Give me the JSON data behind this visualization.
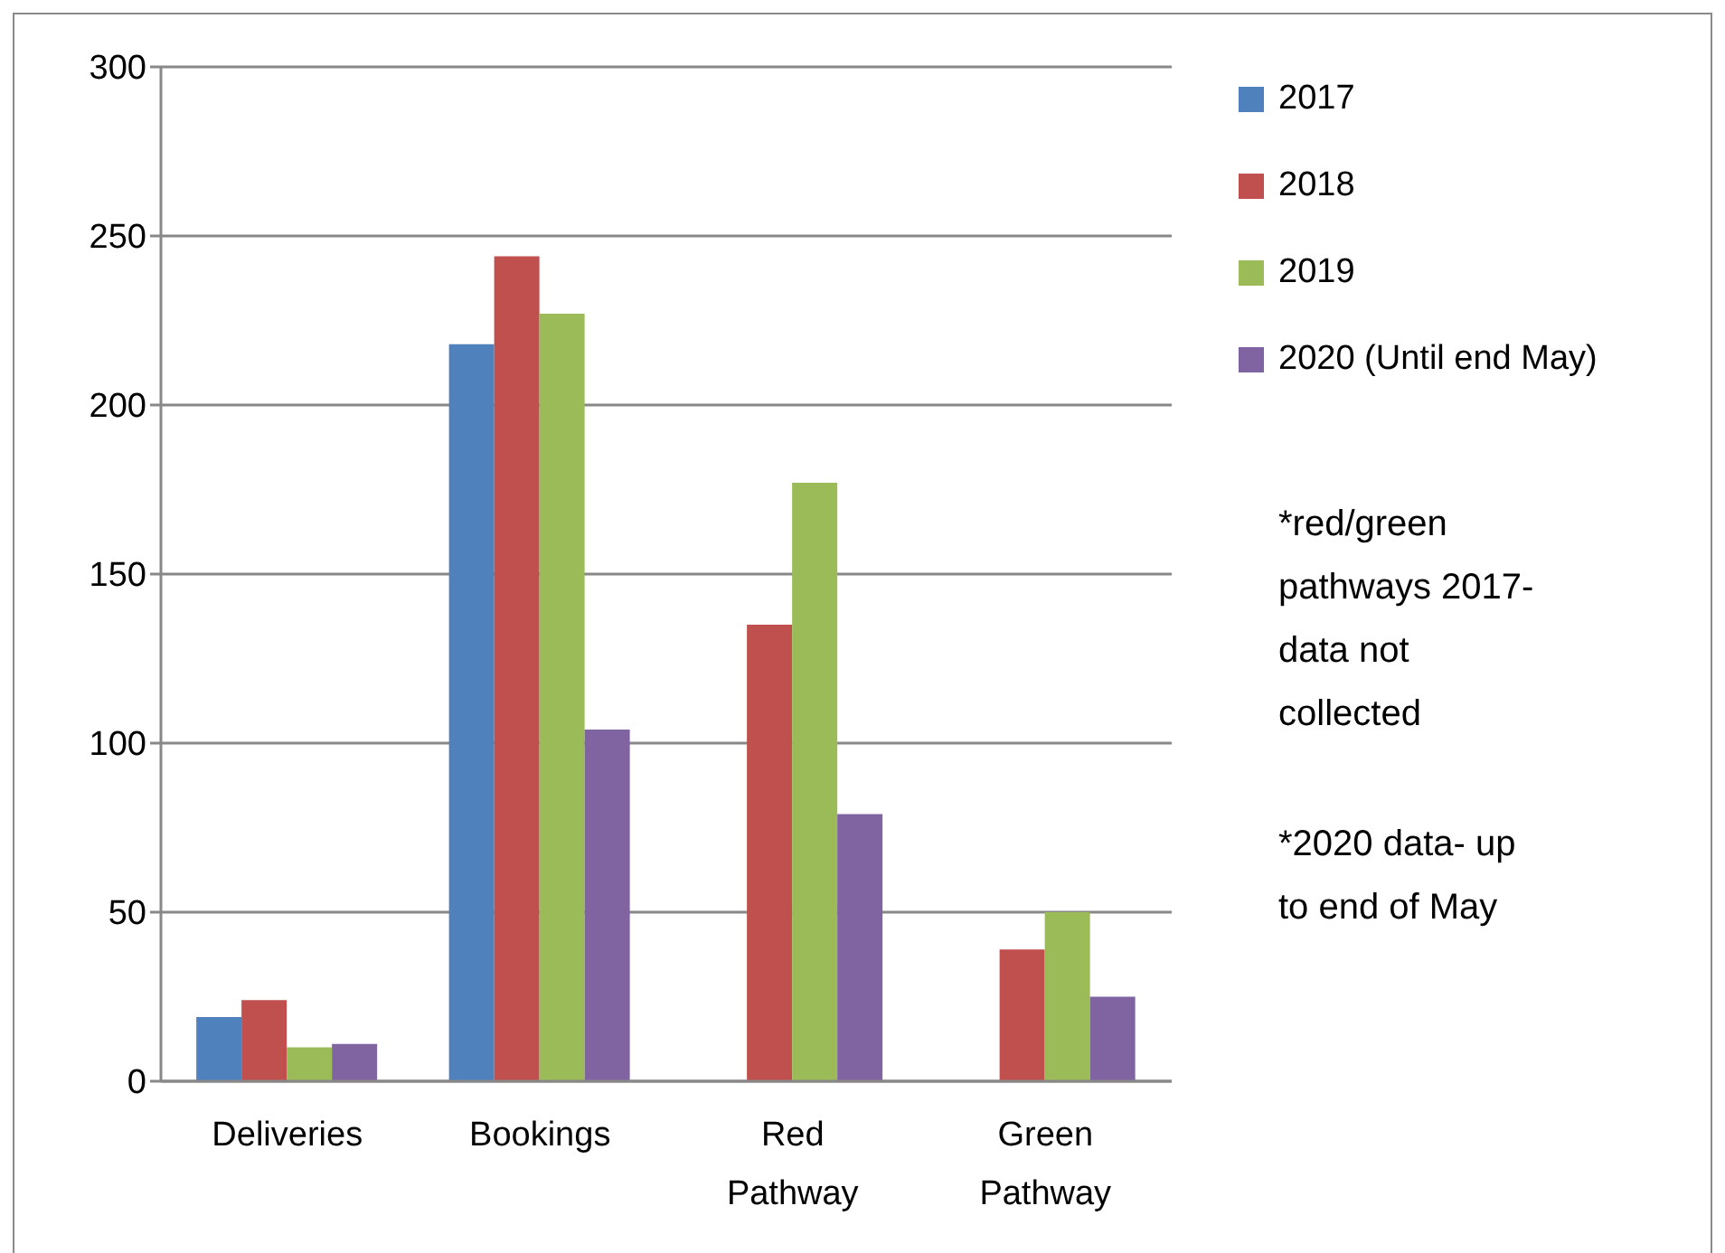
{
  "chart_data": {
    "type": "bar",
    "categories": [
      "Deliveries",
      "Bookings",
      "Red Pathway",
      "Green Pathway"
    ],
    "series": [
      {
        "name": "2017",
        "color": "#4f81bd",
        "values": [
          19,
          218,
          null,
          null
        ]
      },
      {
        "name": "2018",
        "color": "#c0504d",
        "values": [
          24,
          244,
          135,
          39
        ]
      },
      {
        "name": "2019",
        "color": "#9bbb59",
        "values": [
          10,
          227,
          177,
          50
        ]
      },
      {
        "name": "2020 (Until end May)",
        "color": "#8064a2",
        "values": [
          11,
          104,
          79,
          25
        ]
      }
    ],
    "ylim": [
      0,
      300
    ],
    "yticks": [
      0,
      50,
      100,
      150,
      200,
      250,
      300
    ],
    "grid": "y",
    "legend": "right",
    "annotations": [
      "*red/green pathways 2017- data not collected",
      "*2020 data- up to end of May"
    ]
  }
}
